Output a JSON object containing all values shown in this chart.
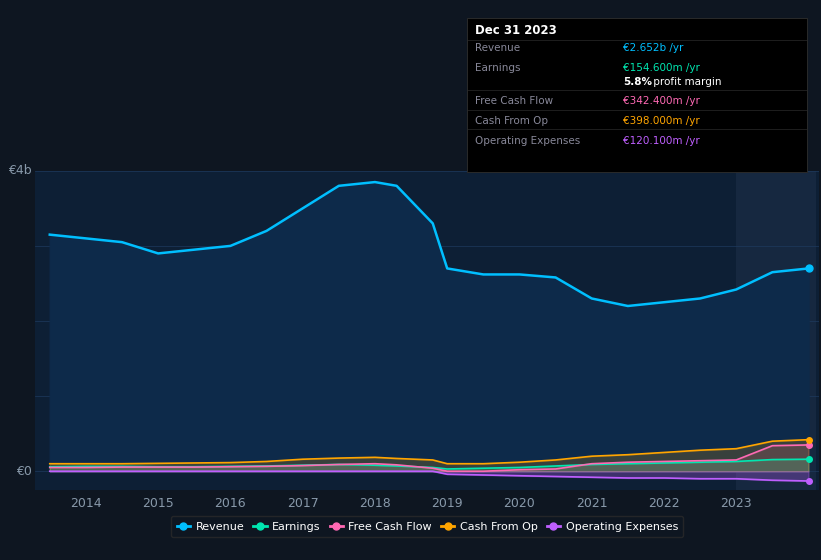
{
  "bg_color": "#0e1621",
  "plot_bg_color": "#0d1f35",
  "grid_color": "#1e3a5f",
  "text_color": "#8899aa",
  "ylabel_top": "€4b",
  "ylabel_zero": "€0",
  "x_years": [
    2013.5,
    2014,
    2014.5,
    2015,
    2015.5,
    2016,
    2016.5,
    2017,
    2017.5,
    2018,
    2018.3,
    2018.8,
    2019,
    2019.5,
    2020,
    2020.5,
    2021,
    2021.5,
    2022,
    2022.5,
    2023,
    2023.5,
    2024.0
  ],
  "revenue": [
    3.15,
    3.1,
    3.05,
    2.9,
    2.95,
    3.0,
    3.2,
    3.5,
    3.8,
    3.85,
    3.8,
    3.3,
    2.7,
    2.62,
    2.62,
    2.58,
    2.3,
    2.2,
    2.25,
    2.3,
    2.42,
    2.65,
    2.7
  ],
  "earnings": [
    0.06,
    0.065,
    0.065,
    0.06,
    0.06,
    0.065,
    0.07,
    0.08,
    0.09,
    0.08,
    0.07,
    0.05,
    0.03,
    0.04,
    0.05,
    0.07,
    0.09,
    0.1,
    0.11,
    0.12,
    0.13,
    0.155,
    0.16
  ],
  "free_cash_flow": [
    0.05,
    0.05,
    0.055,
    0.055,
    0.055,
    0.06,
    0.065,
    0.075,
    0.09,
    0.1,
    0.085,
    0.04,
    0.0,
    0.0,
    0.02,
    0.03,
    0.1,
    0.12,
    0.13,
    0.14,
    0.15,
    0.34,
    0.35
  ],
  "cash_from_op": [
    0.1,
    0.1,
    0.1,
    0.105,
    0.11,
    0.115,
    0.13,
    0.16,
    0.175,
    0.185,
    0.17,
    0.15,
    0.1,
    0.1,
    0.12,
    0.15,
    0.2,
    0.22,
    0.25,
    0.28,
    0.3,
    0.4,
    0.42
  ],
  "operating_expenses": [
    0.0,
    0.0,
    0.0,
    0.0,
    0.0,
    0.0,
    0.0,
    0.0,
    0.0,
    0.0,
    0.0,
    0.0,
    -0.04,
    -0.05,
    -0.06,
    -0.07,
    -0.08,
    -0.09,
    -0.09,
    -0.1,
    -0.1,
    -0.12,
    -0.13
  ],
  "revenue_color": "#00bfff",
  "earnings_color": "#00e6b0",
  "free_cash_flow_color": "#ff69b4",
  "cash_from_op_color": "#ffa500",
  "operating_expenses_color": "#bf5fff",
  "revenue_fill": "#0d2a4a",
  "highlight_x_start": 2023.0,
  "highlight_x_end": 2024.1,
  "highlight_color": "#162840",
  "ylim": [
    -0.25,
    4.0
  ],
  "xlim": [
    2013.3,
    2024.15
  ],
  "xticks": [
    2014,
    2015,
    2016,
    2017,
    2018,
    2019,
    2020,
    2021,
    2022,
    2023
  ],
  "gridlines_y": [
    0,
    1,
    2,
    3,
    4
  ],
  "info_box": {
    "title": "Dec 31 2023",
    "rows": [
      {
        "label": "Revenue",
        "value": "€2.652b /yr",
        "value_color": "#00bfff"
      },
      {
        "label": "Earnings",
        "value": "€154.600m /yr",
        "value_color": "#00e6b0"
      },
      {
        "label": "",
        "value": "5.8% profit margin",
        "value_color": "#ffffff",
        "bold_prefix": "5.8%"
      },
      {
        "label": "Free Cash Flow",
        "value": "€342.400m /yr",
        "value_color": "#ff69b4"
      },
      {
        "label": "Cash From Op",
        "value": "€398.000m /yr",
        "value_color": "#ffa500"
      },
      {
        "label": "Operating Expenses",
        "value": "€120.100m /yr",
        "value_color": "#bf5fff"
      }
    ]
  },
  "legend_items": [
    {
      "label": "Revenue",
      "color": "#00bfff"
    },
    {
      "label": "Earnings",
      "color": "#00e6b0"
    },
    {
      "label": "Free Cash Flow",
      "color": "#ff69b4"
    },
    {
      "label": "Cash From Op",
      "color": "#ffa500"
    },
    {
      "label": "Operating Expenses",
      "color": "#bf5fff"
    }
  ]
}
